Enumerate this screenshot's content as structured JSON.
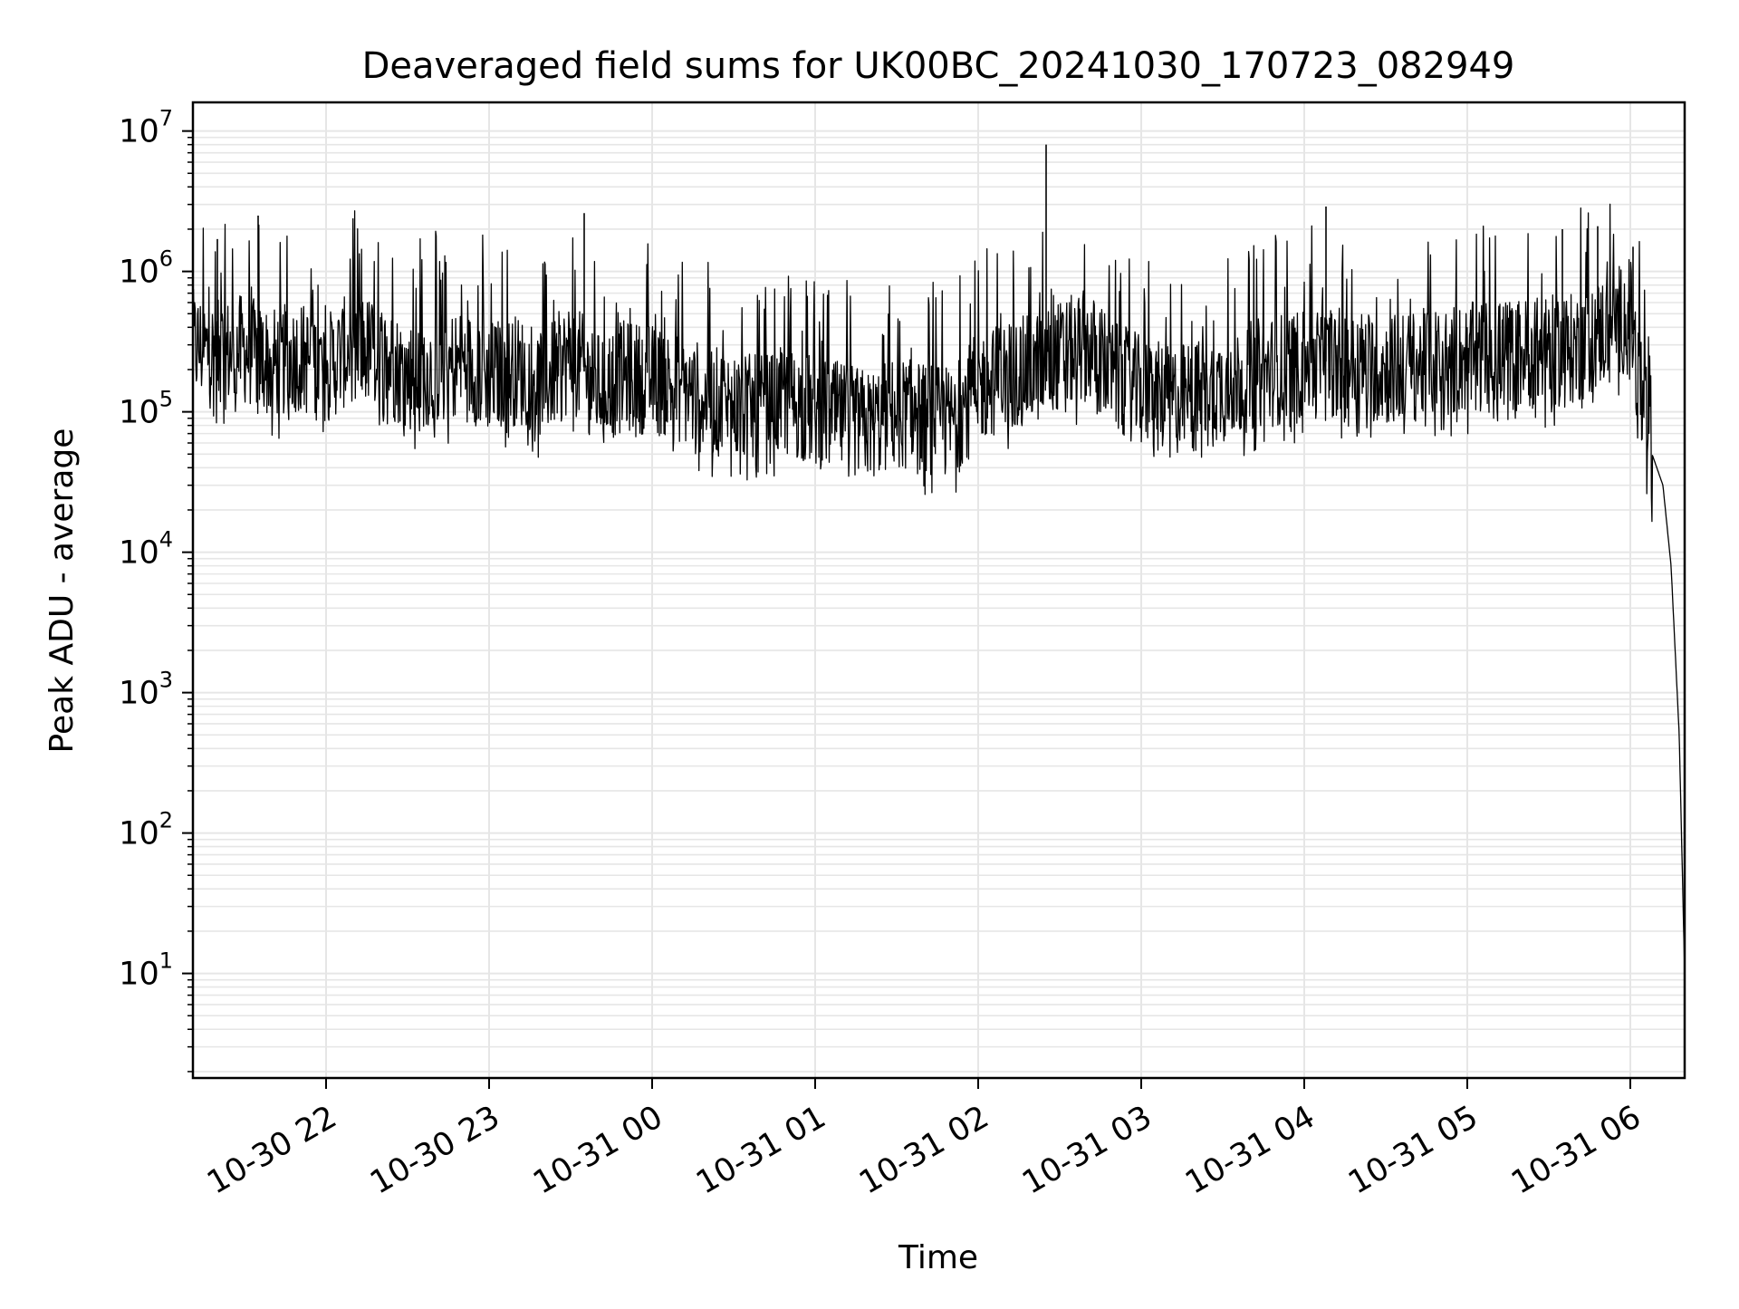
{
  "chart_data": {
    "type": "line",
    "title": "Deaveraged field sums for UK00BC_20241030_170723_082949",
    "xlabel": "Time",
    "ylabel": "Peak ADU - average",
    "yscale": "log",
    "grid": true,
    "legend": "none",
    "xlim": [
      "2024-10-30 21:11",
      "2024-10-31 06:20"
    ],
    "ylim": [
      1.8,
      16000000
    ],
    "x_ticks": [
      {
        "value": "2024-10-30 22:00",
        "label": "10-30 22"
      },
      {
        "value": "2024-10-30 23:00",
        "label": "10-30 23"
      },
      {
        "value": "2024-10-31 00:00",
        "label": "10-31 00"
      },
      {
        "value": "2024-10-31 01:00",
        "label": "10-31 01"
      },
      {
        "value": "2024-10-31 02:00",
        "label": "10-31 02"
      },
      {
        "value": "2024-10-31 03:00",
        "label": "10-31 03"
      },
      {
        "value": "2024-10-31 04:00",
        "label": "10-31 04"
      },
      {
        "value": "2024-10-31 05:00",
        "label": "10-31 05"
      },
      {
        "value": "2024-10-31 06:00",
        "label": "10-31 06"
      }
    ],
    "y_ticks": [
      {
        "value": 10,
        "base": "10",
        "exp": "1"
      },
      {
        "value": 100,
        "base": "10",
        "exp": "2"
      },
      {
        "value": 1000,
        "base": "10",
        "exp": "3"
      },
      {
        "value": 10000,
        "base": "10",
        "exp": "4"
      },
      {
        "value": 100000,
        "base": "10",
        "exp": "5"
      },
      {
        "value": 1000000,
        "base": "10",
        "exp": "6"
      },
      {
        "value": 10000000,
        "base": "10",
        "exp": "7"
      }
    ],
    "series": [
      {
        "color": "#000000",
        "x": [
          "2024-10-30 21:11",
          "2024-10-30 21:20",
          "2024-10-30 21:30",
          "2024-10-30 21:40",
          "2024-10-30 21:50",
          "2024-10-30 22:00",
          "2024-10-30 22:10",
          "2024-10-30 22:20",
          "2024-10-30 22:30",
          "2024-10-30 22:40",
          "2024-10-30 22:50",
          "2024-10-30 23:00",
          "2024-10-30 23:10",
          "2024-10-30 23:20",
          "2024-10-30 23:30",
          "2024-10-30 23:40",
          "2024-10-30 23:50",
          "2024-10-31 00:00",
          "2024-10-31 00:10",
          "2024-10-31 00:20",
          "2024-10-31 00:30",
          "2024-10-31 00:40",
          "2024-10-31 00:50",
          "2024-10-31 01:00",
          "2024-10-31 01:10",
          "2024-10-31 01:20",
          "2024-10-31 01:30",
          "2024-10-31 01:40",
          "2024-10-31 01:50",
          "2024-10-31 02:00",
          "2024-10-31 02:10",
          "2024-10-31 02:20",
          "2024-10-31 02:30",
          "2024-10-31 02:40",
          "2024-10-31 02:50",
          "2024-10-31 03:00",
          "2024-10-31 03:10",
          "2024-10-31 03:20",
          "2024-10-31 03:30",
          "2024-10-31 03:40",
          "2024-10-31 03:50",
          "2024-10-31 04:00",
          "2024-10-31 04:10",
          "2024-10-31 04:20",
          "2024-10-31 04:30",
          "2024-10-31 04:40",
          "2024-10-31 04:50",
          "2024-10-31 05:00",
          "2024-10-31 05:10",
          "2024-10-31 05:20",
          "2024-10-31 05:30",
          "2024-10-31 05:40",
          "2024-10-31 05:50",
          "2024-10-31 06:00",
          "2024-10-31 06:04",
          "2024-10-31 06:08",
          "2024-10-31 06:12",
          "2024-10-31 06:15",
          "2024-10-31 06:18",
          "2024-10-31 06:20"
        ],
        "y": [
          300000,
          250000,
          280000,
          220000,
          250000,
          200000,
          300000,
          250000,
          180000,
          200000,
          220000,
          180000,
          200000,
          160000,
          250000,
          150000,
          180000,
          170000,
          150000,
          120000,
          110000,
          100000,
          120000,
          100000,
          90000,
          80000,
          100000,
          90000,
          85000,
          150000,
          180000,
          200000,
          250000,
          300000,
          180000,
          140000,
          120000,
          130000,
          150000,
          180000,
          200000,
          220000,
          230000,
          220000,
          200000,
          210000,
          230000,
          240000,
          250000,
          260000,
          270000,
          280000,
          380000,
          500000,
          130000,
          50000,
          30000,
          8000,
          500,
          10
        ],
        "peaks": [
          {
            "x": "2024-10-30 21:20",
            "y": 1700000
          },
          {
            "x": "2024-10-30 21:35",
            "y": 2500000
          },
          {
            "x": "2024-10-30 23:35",
            "y": 2600000
          },
          {
            "x": "2024-10-31 02:25",
            "y": 8000000
          },
          {
            "x": "2024-10-31 04:08",
            "y": 2900000
          },
          {
            "x": "2024-10-31 05:35",
            "y": 2000000
          },
          {
            "x": "2024-10-31 05:48",
            "y": 2100000
          },
          {
            "x": "2024-10-31 06:01",
            "y": 1500000
          }
        ]
      }
    ]
  }
}
